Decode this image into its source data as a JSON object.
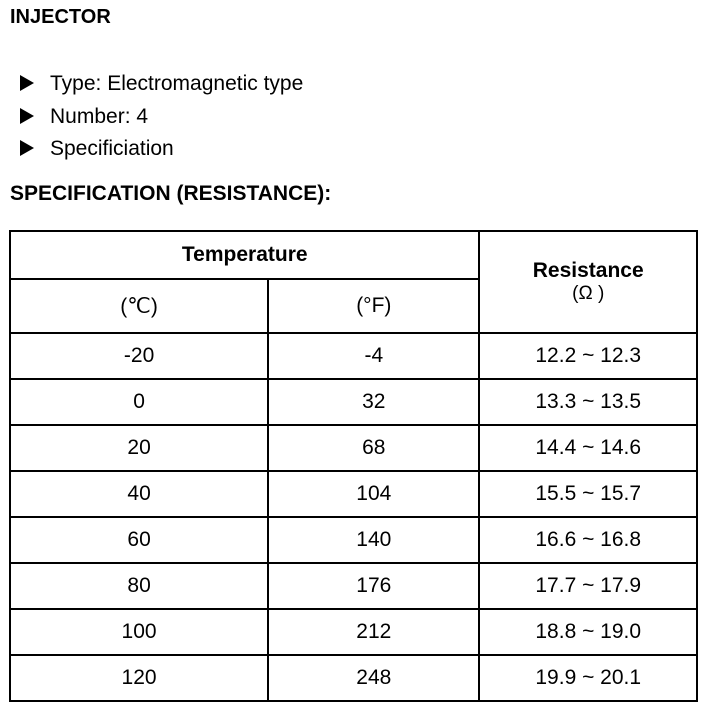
{
  "title": "INJECTOR",
  "bullets": [
    "Type: Electromagnetic type",
    "Number: 4",
    "Specificiation"
  ],
  "spec_heading": "SPECIFICATION (RESISTANCE):",
  "table": {
    "temperature": "Temperature",
    "resistance": "Resistance",
    "resistance_unit": "(Ω )",
    "celsius": "(℃)",
    "fahrenheit": "(°F)",
    "rows": [
      [
        "-20",
        "-4",
        "12.2 ~ 12.3"
      ],
      [
        "0",
        "32",
        "13.3 ~ 13.5"
      ],
      [
        "20",
        "68",
        "14.4 ~ 14.6"
      ],
      [
        "40",
        "104",
        "15.5 ~ 15.7"
      ],
      [
        "60",
        "140",
        "16.6 ~ 16.8"
      ],
      [
        "80",
        "176",
        "17.7 ~ 17.9"
      ],
      [
        "100",
        "212",
        "18.8 ~ 19.0"
      ],
      [
        "120",
        "248",
        "19.9 ~ 20.1"
      ]
    ]
  }
}
